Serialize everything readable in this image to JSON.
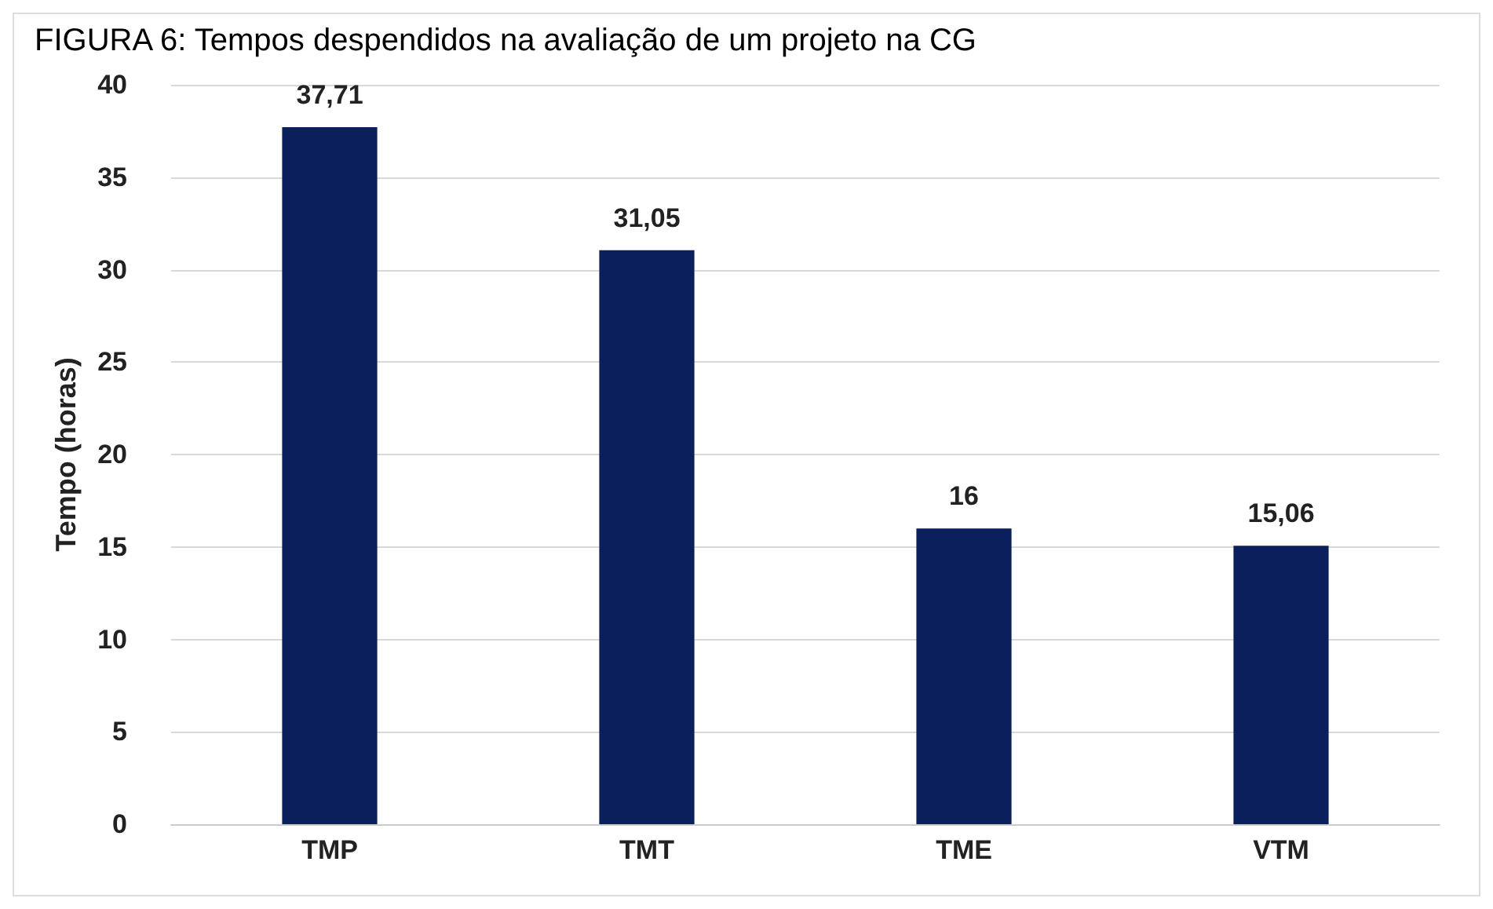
{
  "chart_data": {
    "type": "bar",
    "title": "FIGURA 6: Tempos despendidos na avaliação de um projeto na CG",
    "ylabel": "Tempo (horas)",
    "categories": [
      "TMP",
      "TMT",
      "TME",
      "VTM"
    ],
    "values": [
      37.71,
      31.05,
      16,
      15.06
    ],
    "value_labels": [
      "37,71",
      "31,05",
      "16",
      "15,06"
    ],
    "color": "#0a1f5c",
    "ylim": [
      0,
      40
    ],
    "yticks": [
      0,
      5,
      10,
      15,
      20,
      25,
      30,
      35,
      40
    ],
    "grid": "y"
  }
}
